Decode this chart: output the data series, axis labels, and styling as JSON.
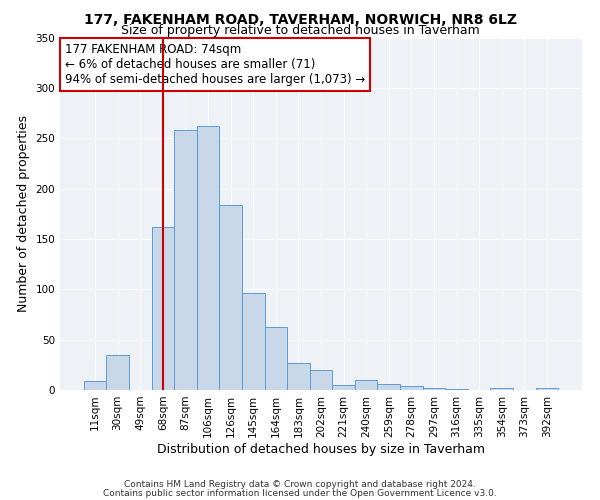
{
  "title": "177, FAKENHAM ROAD, TAVERHAM, NORWICH, NR8 6LZ",
  "subtitle": "Size of property relative to detached houses in Taverham",
  "xlabel": "Distribution of detached houses by size in Taverham",
  "ylabel": "Number of detached properties",
  "bin_labels": [
    "11sqm",
    "30sqm",
    "49sqm",
    "68sqm",
    "87sqm",
    "106sqm",
    "126sqm",
    "145sqm",
    "164sqm",
    "183sqm",
    "202sqm",
    "221sqm",
    "240sqm",
    "259sqm",
    "278sqm",
    "297sqm",
    "316sqm",
    "335sqm",
    "354sqm",
    "373sqm",
    "392sqm"
  ],
  "bar_heights": [
    9,
    35,
    0,
    162,
    258,
    262,
    184,
    96,
    63,
    27,
    20,
    5,
    10,
    6,
    4,
    2,
    1,
    0,
    2,
    0,
    2
  ],
  "bar_color": "#c8d8e8",
  "bar_edge_color": "#5b9bd5",
  "vline_x": 3.5,
  "vline_color": "#cc0000",
  "annotation_lines": [
    "177 FAKENHAM ROAD: 74sqm",
    "← 6% of detached houses are smaller (71)",
    "94% of semi-detached houses are larger (1,073) →"
  ],
  "annotation_box_edge": "#cc0000",
  "ylim": [
    0,
    350
  ],
  "yticks": [
    0,
    50,
    100,
    150,
    200,
    250,
    300,
    350
  ],
  "footer_line1": "Contains HM Land Registry data © Crown copyright and database right 2024.",
  "footer_line2": "Contains public sector information licensed under the Open Government Licence v3.0.",
  "title_fontsize": 10,
  "subtitle_fontsize": 9,
  "axis_label_fontsize": 9,
  "tick_fontsize": 7.5,
  "annotation_fontsize": 8.5,
  "footer_fontsize": 6.5
}
